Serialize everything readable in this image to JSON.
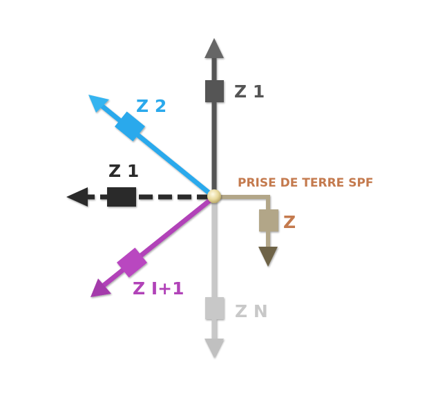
{
  "labels": {
    "z1_top": "Z 1",
    "z2": "Z 2",
    "z1_left": "Z 1",
    "zi1": "Z I+1",
    "zn": "Z N",
    "z": "Z",
    "earth": "PRISE DE TERRE SPF"
  },
  "colors": {
    "z1_top": "#555555",
    "z2": "#2aa9ec",
    "z1_left": "#2b2b2b",
    "zi1": "#b143b8",
    "zn": "#c8c8c8",
    "earth": "#b2a688",
    "earth_label": "#c47a4e"
  },
  "icons": {
    "node": "junction-node-icon",
    "resistor": "impedance-block-icon"
  }
}
